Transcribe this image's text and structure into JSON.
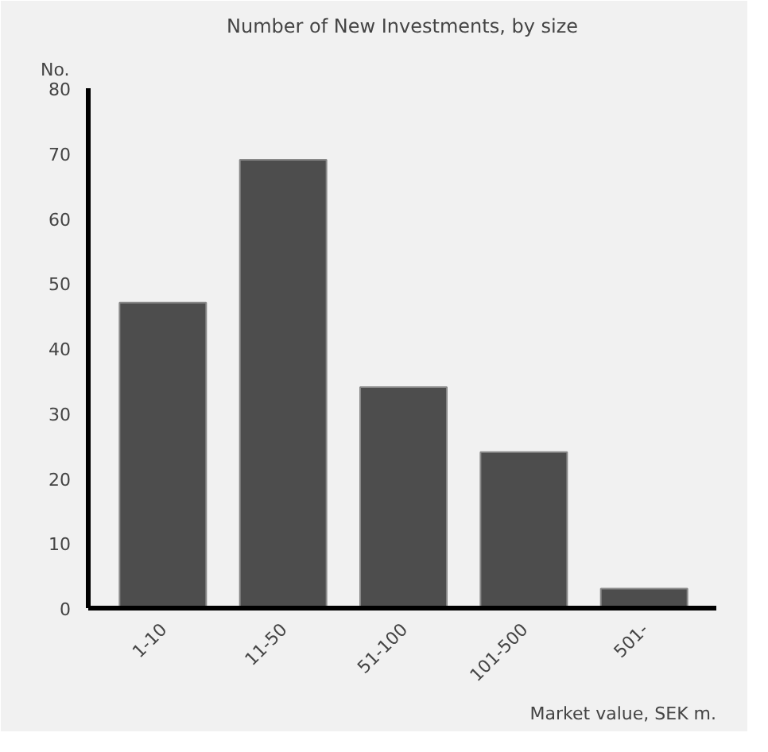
{
  "chart_data": {
    "type": "bar",
    "title": "Number of New Investments, by size",
    "ylabel": "No.",
    "xlabel": "Market value, SEK m.",
    "categories": [
      "1-10",
      "11-50",
      "51-100",
      "101-500",
      "501-"
    ],
    "values": [
      47,
      69,
      34,
      24,
      3
    ],
    "color": "#4d4d4d",
    "ylim": [
      0,
      80
    ],
    "yticks": [
      0,
      10,
      20,
      30,
      40,
      50,
      60,
      70,
      80
    ],
    "grid": false
  }
}
